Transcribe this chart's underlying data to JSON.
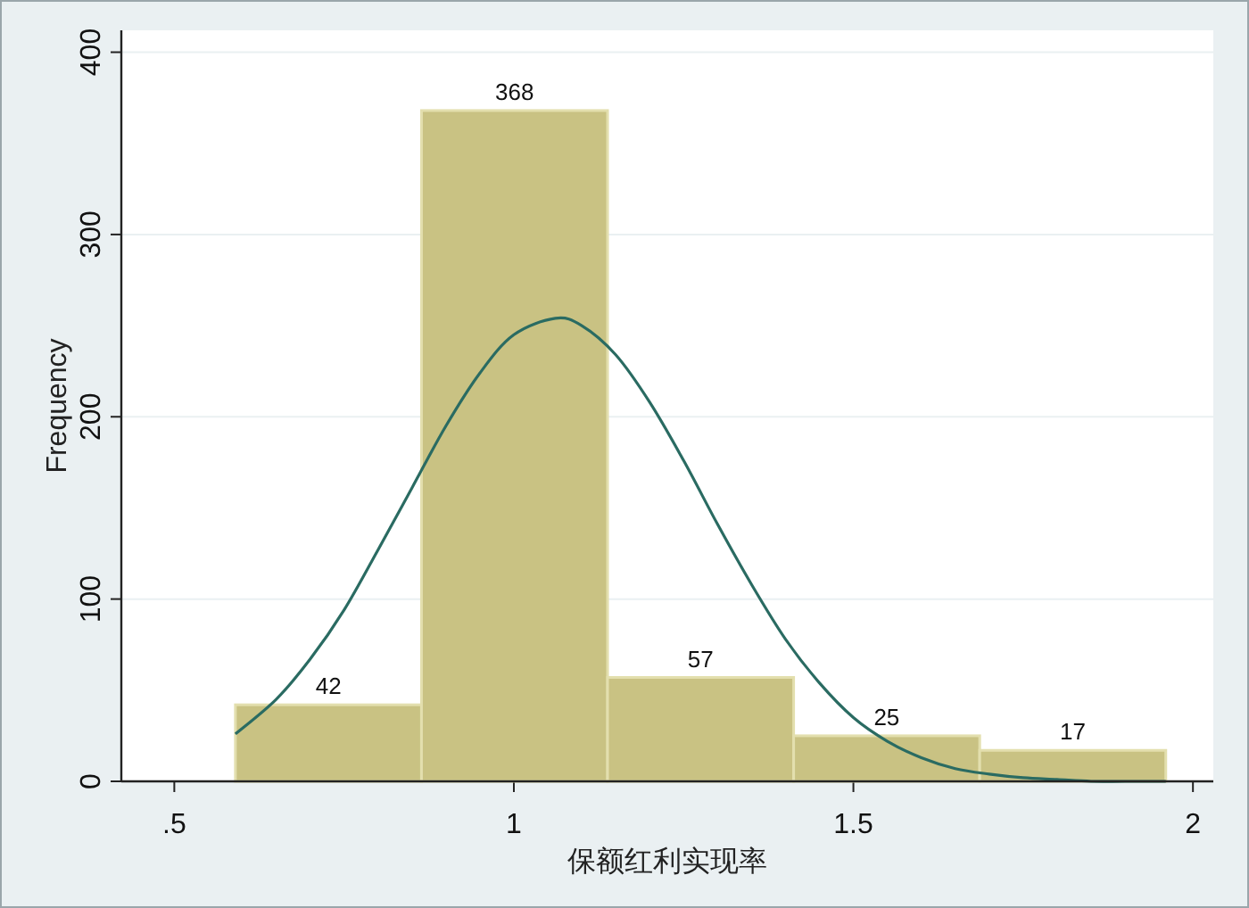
{
  "chart_data": {
    "type": "histogram",
    "xlabel": "保额红利实现率",
    "ylabel": "Frequency",
    "bins": [
      0.59,
      0.864,
      1.138,
      1.412,
      1.686,
      1.96
    ],
    "values": [
      42,
      368,
      57,
      25,
      17
    ],
    "color": "#c9c283",
    "value_labels": [
      "42",
      "368",
      "57",
      "25",
      "17"
    ],
    "series": [
      {
        "type": "line",
        "color": "#2a6b62",
        "x": [
          0.59,
          0.65,
          0.7,
          0.75,
          0.8,
          0.85,
          0.9,
          0.95,
          1.0,
          1.061,
          1.1,
          1.15,
          1.2,
          1.25,
          1.3,
          1.35,
          1.4,
          1.45,
          1.5,
          1.55,
          1.6,
          1.65,
          1.7,
          1.75,
          1.8,
          1.85,
          1.9,
          1.96
        ],
        "values": [
          26,
          45,
          67,
          94,
          127,
          161,
          195,
          224,
          245,
          254,
          250,
          234,
          208,
          176,
          141,
          108,
          78,
          54,
          35,
          22,
          13,
          7,
          4,
          2,
          1,
          0,
          0,
          0
        ]
      }
    ],
    "xlim": [
      0.422,
      2.03
    ],
    "ylim": [
      0,
      412
    ],
    "xticks": [
      {
        "value": 0.5,
        "label": ".5"
      },
      1,
      1.5,
      2
    ],
    "yticks": [
      0,
      100,
      200,
      300,
      400
    ],
    "grid": "y"
  }
}
